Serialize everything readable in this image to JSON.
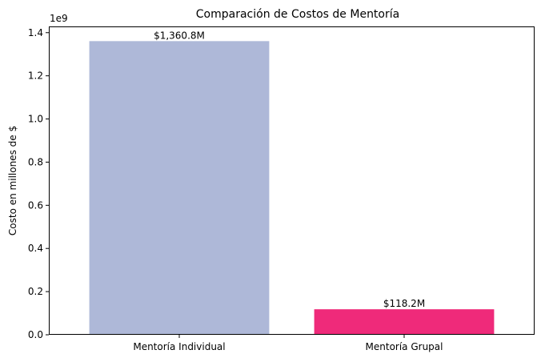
{
  "chart_data": {
    "type": "bar",
    "title": "Comparación de Costos de Mentoría",
    "xlabel": "",
    "ylabel": "Costo en millones de $",
    "offset_label": "1e9",
    "categories": [
      "Mentoría Individual",
      "Mentoría Grupal"
    ],
    "values": [
      1360800000,
      118200000
    ],
    "data_labels": [
      "$1,360.8M",
      "$118.2M"
    ],
    "colors": [
      "#aeb8d8",
      "#ef2a7a"
    ],
    "ylim": [
      0,
      1428840000
    ],
    "yticks": [
      0,
      200000000,
      400000000,
      600000000,
      800000000,
      1000000000,
      1200000000,
      1400000000
    ],
    "ytick_labels": [
      "0.0",
      "0.2",
      "0.4",
      "0.6",
      "0.8",
      "1.0",
      "1.2",
      "1.4"
    ],
    "grid": false,
    "legend": "none"
  }
}
